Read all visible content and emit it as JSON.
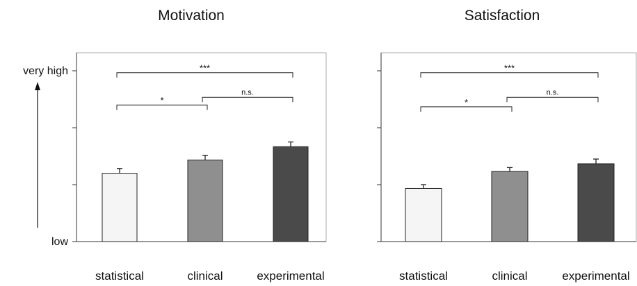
{
  "chart_data": [
    {
      "type": "bar",
      "title": "Motivation",
      "categories": [
        "statistical",
        "clinical",
        "experimental"
      ],
      "values": [
        4.6,
        5.3,
        6.0
      ],
      "errors": [
        0.25,
        0.25,
        0.25
      ],
      "ylim": [
        1,
        10
      ],
      "yticks": [
        1,
        4,
        7,
        10
      ],
      "ytick_labels": [
        "low",
        "",
        "",
        "very high"
      ],
      "colors": [
        "#f5f5f5",
        "#8f8f8f",
        "#4a4a4a"
      ],
      "comparisons": [
        {
          "from": 0,
          "to": 2,
          "label": "***",
          "y": 9.9
        },
        {
          "from": 1,
          "to": 2,
          "label": "n.s.",
          "y": 8.6
        },
        {
          "from": 0,
          "to": 1,
          "label": "*",
          "y": 8.2
        }
      ]
    },
    {
      "type": "bar",
      "title": "Satisfaction",
      "categories": [
        "statistical",
        "clinical",
        "experimental"
      ],
      "values": [
        3.8,
        4.7,
        5.1
      ],
      "errors": [
        0.2,
        0.2,
        0.25
      ],
      "ylim": [
        1,
        10
      ],
      "yticks": [
        1,
        4,
        7,
        10
      ],
      "ytick_labels": [
        "",
        "",
        "",
        ""
      ],
      "colors": [
        "#f5f5f5",
        "#8f8f8f",
        "#4a4a4a"
      ],
      "comparisons": [
        {
          "from": 0,
          "to": 2,
          "label": "***",
          "y": 9.9
        },
        {
          "from": 1,
          "to": 2,
          "label": "n.s.",
          "y": 8.6
        },
        {
          "from": 0,
          "to": 1,
          "label": "*",
          "y": 8.1
        }
      ]
    }
  ]
}
